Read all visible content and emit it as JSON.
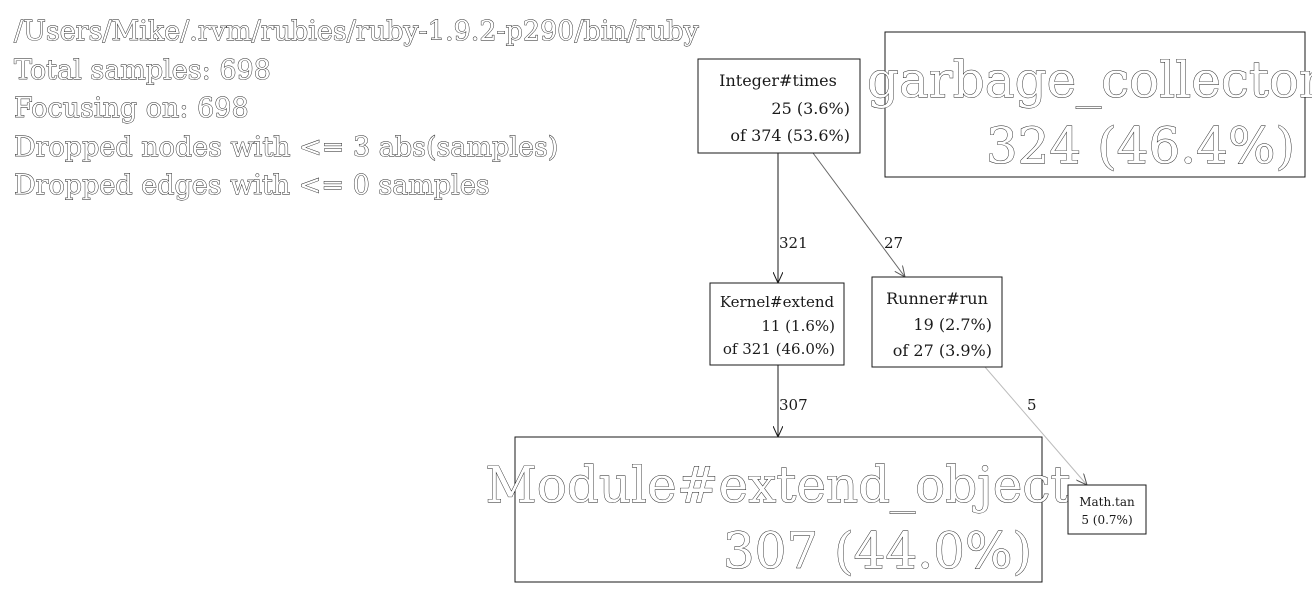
{
  "header": {
    "lines": [
      "/Users/Mike/.rvm/rubies/ruby-1.9.2-p290/bin/ruby",
      "Total samples: 698",
      "Focusing on: 698",
      "Dropped nodes with <= 3 abs(samples)",
      "Dropped edges with <= 0 samples"
    ]
  },
  "nodes": {
    "integer_times": {
      "name": "Integer#times",
      "self": "25 (3.6%)",
      "cumulative": "of 374 (53.6%)"
    },
    "garbage_collector": {
      "name": "garbage_collector",
      "self": "324 (46.4%)"
    },
    "kernel_extend": {
      "name": "Kernel#extend",
      "self": "11 (1.6%)",
      "cumulative": "of 321 (46.0%)"
    },
    "runner_run": {
      "name": "Runner#run",
      "self": "19 (2.7%)",
      "cumulative": "of 27 (3.9%)"
    },
    "module_extend_object": {
      "name": "Module#extend_object",
      "self": "307 (44.0%)"
    },
    "math_tan": {
      "name": "Math.tan",
      "self": "5 (0.7%)"
    }
  },
  "edges": {
    "times_to_extend": "321",
    "times_to_run": "27",
    "extend_to_extend_object": "307",
    "run_to_tan": "5"
  }
}
